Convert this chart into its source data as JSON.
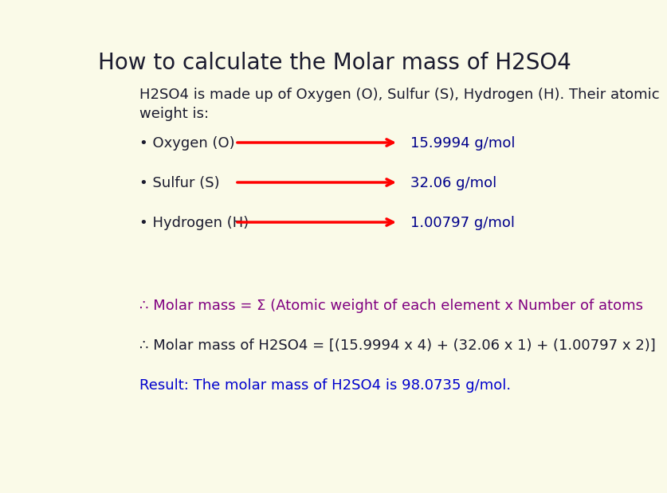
{
  "background_color": "#fafae8",
  "title": "How to calculate the Molar mass of H2SO4",
  "title_fontsize": 20,
  "title_color": "#1a1a2e",
  "intro_text": "H2SO4 is made up of Oxygen (O), Sulfur (S), Hydrogen (H). Their atomic\nweight is:",
  "intro_fontsize": 13,
  "intro_color": "#1a1a2e",
  "elements": [
    {
      "label": "• Oxygen (O)",
      "value": "15.9994 g/mol"
    },
    {
      "label": "• Sulfur (S)",
      "value": "32.06 g/mol"
    },
    {
      "label": "• Hydrogen (H)",
      "value": "1.00797 g/mol"
    }
  ],
  "element_fontsize": 13,
  "element_label_color": "#1a1a2e",
  "element_value_color": "#00008b",
  "arrow_color": "red",
  "arrow_linewidth": 2.5,
  "formula_line1": "∴ Molar mass = Σ (Atomic weight of each element x Number of atoms",
  "formula_line1_color": "#800080",
  "formula_line1_fontsize": 13,
  "formula_line2": "∴ Molar mass of H2SO4 = [(15.9994 x 4) + (32.06 x 1) + (1.00797 x 2)]",
  "formula_line2_color": "#1a1a2e",
  "formula_line2_fontsize": 13,
  "result_text": "Result: The molar mass of H2SO4 is 98.0735 g/mol.",
  "result_color": "#0000cd",
  "result_fontsize": 13
}
